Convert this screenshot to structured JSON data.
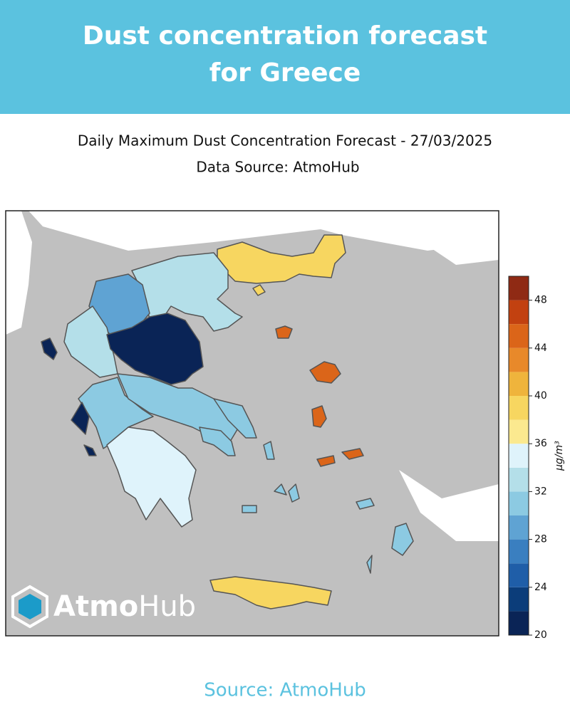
{
  "header": {
    "title": [
      "Dust concentration forecast",
      "for Greece"
    ]
  },
  "map": {
    "title": [
      "Daily Maximum Dust Concentration Forecast - 27/03/2025",
      "Data Source: AtmoHub"
    ],
    "colorbar": {
      "label": "μg/m³",
      "levels": [
        20,
        22,
        24,
        26,
        28,
        30,
        32,
        34,
        36,
        38,
        40,
        42,
        44,
        46,
        48,
        50
      ],
      "colors": [
        "#0a2456",
        "#0b3d7a",
        "#1f5ea8",
        "#3a7fc0",
        "#5fa3d3",
        "#8ccae2",
        "#b4dfe9",
        "#dff3fb",
        "#fbe98f",
        "#f7d660",
        "#efb43c",
        "#e8892a",
        "#db6519",
        "#c24110",
        "#8f2a14"
      ],
      "ticks": [
        20,
        24,
        28,
        32,
        36,
        40,
        44,
        48
      ]
    },
    "regions": [
      {
        "value": 39
      },
      {
        "value": 39
      },
      {
        "value": 33
      },
      {
        "value": 29
      },
      {
        "value": 33
      },
      {
        "value": 21
      },
      {
        "value": 21
      },
      {
        "value": 31
      },
      {
        "value": 31
      },
      {
        "value": 35
      },
      {
        "value": 31
      },
      {
        "value": 21
      },
      {
        "value": 39
      },
      {
        "value": 45
      },
      {
        "value": 45
      },
      {
        "value": 45
      },
      {
        "value": 45
      },
      {
        "value": 31
      },
      {
        "value": 31
      },
      {
        "value": 31
      }
    ],
    "logo": [
      "Atmo",
      "Hub"
    ]
  },
  "footer": {
    "source": "Source: AtmoHub"
  }
}
